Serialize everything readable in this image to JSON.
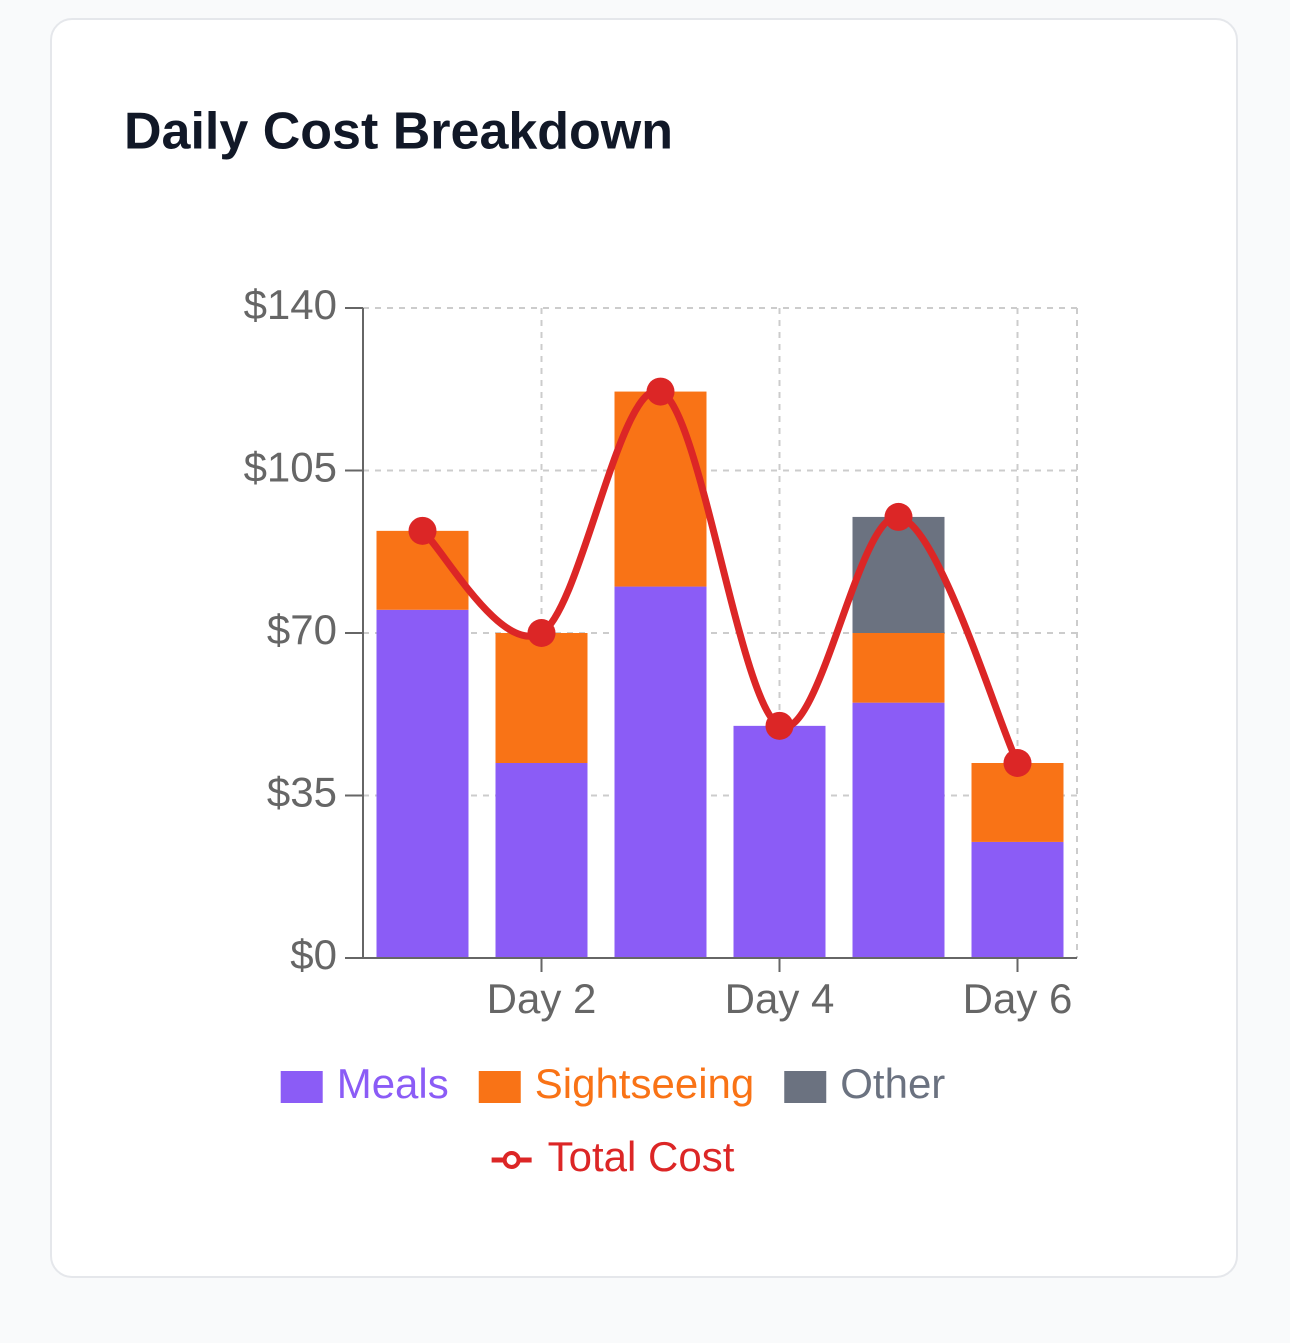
{
  "chart_data": {
    "type": "bar",
    "title": "Daily Cost Breakdown",
    "categories": [
      null,
      "Day 2",
      null,
      "Day 4",
      null,
      "Day 6"
    ],
    "series": [
      {
        "name": "Meals",
        "color": "#8b5cf6",
        "values": [
          75,
          42,
          80,
          50,
          55,
          25
        ]
      },
      {
        "name": "Sightseeing",
        "color": "#f97316",
        "values": [
          17,
          28,
          42,
          0,
          15,
          17
        ]
      },
      {
        "name": "Other",
        "color": "#6b7280",
        "values": [
          0,
          0,
          0,
          0,
          25,
          0
        ]
      },
      {
        "name": "Total Cost",
        "color": "#dc2626",
        "type": "line",
        "values": [
          92,
          70,
          122,
          50,
          95,
          42
        ]
      }
    ],
    "ylim": [
      0,
      140
    ],
    "yticks": [
      {
        "value": 0,
        "label": "$0"
      },
      {
        "value": 35,
        "label": "$35"
      },
      {
        "value": 70,
        "label": "$70"
      },
      {
        "value": 105,
        "label": "$105"
      },
      {
        "value": 140,
        "label": "$140"
      }
    ],
    "grid": true
  }
}
